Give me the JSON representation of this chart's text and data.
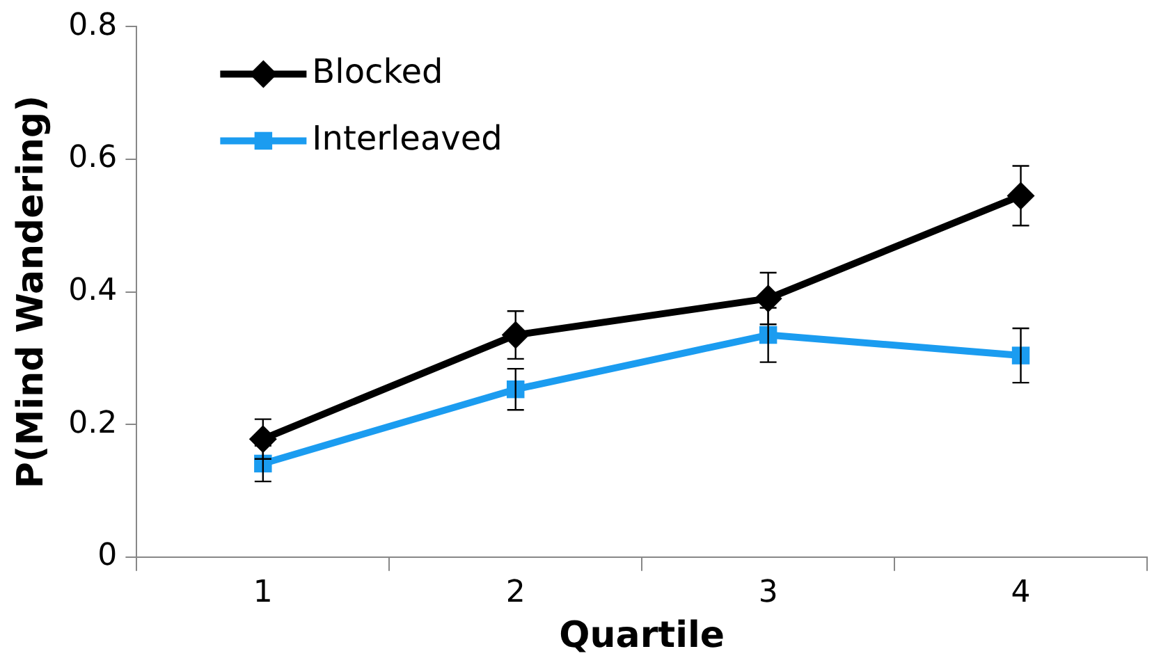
{
  "chart_data": {
    "type": "line",
    "xlabel": "Quartile",
    "ylabel": "P(Mind Wandering)",
    "categories": [
      "1",
      "2",
      "3",
      "4"
    ],
    "ylim": [
      0,
      0.8
    ],
    "yticks": [
      0,
      0.2,
      0.4,
      0.6,
      0.8
    ],
    "grid": false,
    "legend": "top left",
    "line_style": "solid",
    "series": [
      {
        "name": "Blocked",
        "color": "#000000",
        "marker": "diamond",
        "values": [
          0.178,
          0.335,
          0.39,
          0.545
        ],
        "errors": [
          0.03,
          0.036,
          0.039,
          0.045
        ]
      },
      {
        "name": "Interleaved",
        "color": "#1b9cf0",
        "marker": "square",
        "values": [
          0.141,
          0.253,
          0.335,
          0.304
        ],
        "errors": [
          0.027,
          0.031,
          0.041,
          0.041
        ]
      }
    ]
  }
}
